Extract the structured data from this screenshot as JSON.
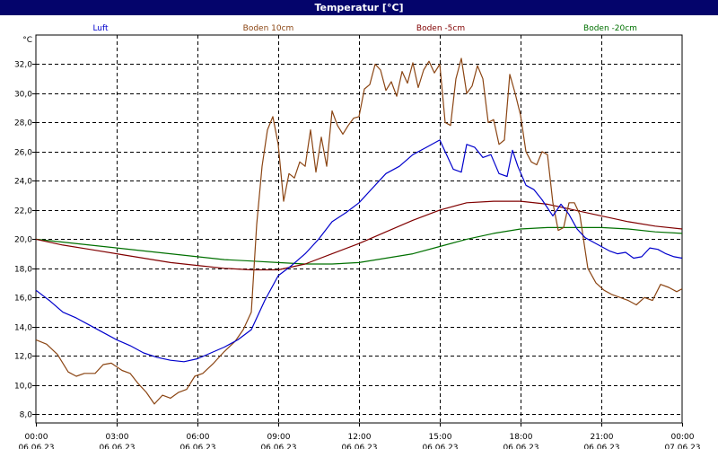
{
  "window": {
    "title": "Temperatur [°C]"
  },
  "colors": {
    "titlebar": "#04046b",
    "background": "#ffffff",
    "grid": "#000000"
  },
  "chart_data": {
    "type": "line",
    "ylabel": "°C",
    "ylim": [
      7.4,
      34.0
    ],
    "yticks": [
      "8,0",
      "10,0",
      "12,0",
      "14,0",
      "16,0",
      "18,0",
      "20,0",
      "22,0",
      "24,0",
      "26,0",
      "28,0",
      "30,0",
      "32,0"
    ],
    "ytick_values": [
      8,
      10,
      12,
      14,
      16,
      18,
      20,
      22,
      24,
      26,
      28,
      30,
      32
    ],
    "xlim": [
      0,
      24
    ],
    "xticks": [
      {
        "x": 0,
        "time": "00:00",
        "date": "06.06.23"
      },
      {
        "x": 3,
        "time": "03:00",
        "date": "06.06.23"
      },
      {
        "x": 6,
        "time": "06:00",
        "date": "06.06.23"
      },
      {
        "x": 9,
        "time": "09:00",
        "date": "06.06.23"
      },
      {
        "x": 12,
        "time": "12:00",
        "date": "06.06.23"
      },
      {
        "x": 15,
        "time": "15:00",
        "date": "06.06.23"
      },
      {
        "x": 18,
        "time": "18:00",
        "date": "06.06.23"
      },
      {
        "x": 21,
        "time": "21:00",
        "date": "06.06.23"
      },
      {
        "x": 24,
        "time": "00:00",
        "date": "07.06.23"
      }
    ],
    "grid": true,
    "legend_position": "top",
    "series": [
      {
        "name": "Luft",
        "color": "#0000cc",
        "x": [
          0,
          0.5,
          1,
          1.5,
          2,
          2.5,
          3,
          3.5,
          4,
          4.5,
          5,
          5.5,
          6,
          6.5,
          7,
          7.5,
          8,
          8.5,
          9,
          9.5,
          10,
          10.5,
          11,
          11.5,
          12,
          12.5,
          13,
          13.5,
          14,
          14.5,
          15,
          15.5,
          15.8,
          16,
          16.3,
          16.6,
          16.9,
          17.2,
          17.5,
          17.7,
          17.9,
          18.2,
          18.5,
          18.8,
          19.2,
          19.5,
          19.8,
          20.1,
          20.4,
          20.7,
          21,
          21.3,
          21.6,
          21.9,
          22.2,
          22.5,
          22.8,
          23.1,
          23.4,
          23.7,
          24
        ],
        "y": [
          16.5,
          15.8,
          15.0,
          14.6,
          14.1,
          13.6,
          13.1,
          12.7,
          12.2,
          11.9,
          11.7,
          11.6,
          11.8,
          12.2,
          12.6,
          13.1,
          13.8,
          15.8,
          17.5,
          18.2,
          19.0,
          20.0,
          21.2,
          21.8,
          22.5,
          23.5,
          24.5,
          25.0,
          25.8,
          26.3,
          26.8,
          24.8,
          24.6,
          26.5,
          26.3,
          25.6,
          25.8,
          24.5,
          24.3,
          26.1,
          25.0,
          23.7,
          23.4,
          22.7,
          21.6,
          22.4,
          21.7,
          20.7,
          20.1,
          19.8,
          19.5,
          19.2,
          19.0,
          19.1,
          18.7,
          18.8,
          19.4,
          19.3,
          19.0,
          18.8,
          18.7
        ]
      },
      {
        "name": "Boden 10cm",
        "color": "#8b4513",
        "x": [
          0,
          0.4,
          0.8,
          1.2,
          1.5,
          1.8,
          2.2,
          2.5,
          2.8,
          3.2,
          3.5,
          3.8,
          4.1,
          4.4,
          4.7,
          5,
          5.3,
          5.6,
          5.9,
          6.2,
          6.6,
          7,
          7.4,
          7.7,
          8,
          8.2,
          8.4,
          8.6,
          8.8,
          9,
          9.2,
          9.4,
          9.6,
          9.8,
          10,
          10.2,
          10.4,
          10.6,
          10.8,
          11,
          11.2,
          11.4,
          11.6,
          11.8,
          12,
          12.2,
          12.4,
          12.6,
          12.8,
          13,
          13.2,
          13.4,
          13.6,
          13.8,
          14,
          14.2,
          14.4,
          14.6,
          14.8,
          15,
          15.2,
          15.4,
          15.6,
          15.8,
          16,
          16.2,
          16.4,
          16.6,
          16.8,
          17,
          17.2,
          17.4,
          17.6,
          17.8,
          18,
          18.2,
          18.4,
          18.6,
          18.8,
          19,
          19.2,
          19.4,
          19.6,
          19.8,
          20,
          20.2,
          20.5,
          20.8,
          21.1,
          21.4,
          21.7,
          22,
          22.3,
          22.6,
          22.9,
          23.2,
          23.5,
          23.8,
          24
        ],
        "y": [
          13.1,
          12.8,
          12.1,
          10.9,
          10.6,
          10.8,
          10.8,
          11.4,
          11.5,
          11.0,
          10.8,
          10.1,
          9.5,
          8.7,
          9.3,
          9.1,
          9.5,
          9.7,
          10.6,
          10.8,
          11.5,
          12.3,
          13.0,
          13.8,
          15.0,
          21.0,
          25.0,
          27.5,
          28.4,
          26.5,
          22.6,
          24.5,
          24.2,
          25.3,
          25.0,
          27.5,
          24.6,
          27.0,
          25.0,
          28.8,
          27.8,
          27.2,
          27.8,
          28.3,
          28.4,
          30.3,
          30.6,
          32.0,
          31.6,
          30.2,
          30.8,
          29.8,
          31.5,
          30.7,
          32.1,
          30.4,
          31.6,
          32.2,
          31.4,
          32.0,
          28.0,
          27.8,
          31.0,
          32.4,
          30.0,
          30.5,
          31.9,
          31.0,
          28.0,
          28.2,
          26.5,
          26.8,
          31.3,
          30.0,
          28.5,
          26.0,
          25.3,
          25.1,
          26.0,
          25.8,
          22.5,
          20.6,
          20.8,
          22.5,
          22.5,
          21.7,
          18.0,
          17.0,
          16.5,
          16.2,
          16.0,
          15.8,
          15.5,
          16.0,
          15.8,
          16.9,
          16.7,
          16.4,
          16.6
        ]
      },
      {
        "name": "Boden -5cm",
        "color": "#800000",
        "x": [
          0,
          1,
          2,
          3,
          4,
          5,
          6,
          7,
          8,
          9,
          10,
          11,
          12,
          13,
          14,
          15,
          16,
          17,
          18,
          19,
          20,
          21,
          22,
          23,
          24
        ],
        "y": [
          20.0,
          19.6,
          19.3,
          19.0,
          18.7,
          18.4,
          18.2,
          18.0,
          17.9,
          17.9,
          18.3,
          19.0,
          19.7,
          20.5,
          21.3,
          22.0,
          22.5,
          22.6,
          22.6,
          22.4,
          22.0,
          21.6,
          21.2,
          20.9,
          20.7
        ]
      },
      {
        "name": "Boden -20cm",
        "color": "#007000",
        "x": [
          0,
          1,
          2,
          3,
          4,
          5,
          6,
          7,
          8,
          9,
          10,
          11,
          12,
          13,
          14,
          15,
          16,
          17,
          18,
          19,
          20,
          21,
          22,
          23,
          24
        ],
        "y": [
          20.0,
          19.8,
          19.6,
          19.4,
          19.2,
          19.0,
          18.8,
          18.6,
          18.5,
          18.4,
          18.3,
          18.3,
          18.4,
          18.7,
          19.0,
          19.5,
          20.0,
          20.4,
          20.7,
          20.8,
          20.8,
          20.8,
          20.7,
          20.5,
          20.4
        ]
      }
    ]
  }
}
